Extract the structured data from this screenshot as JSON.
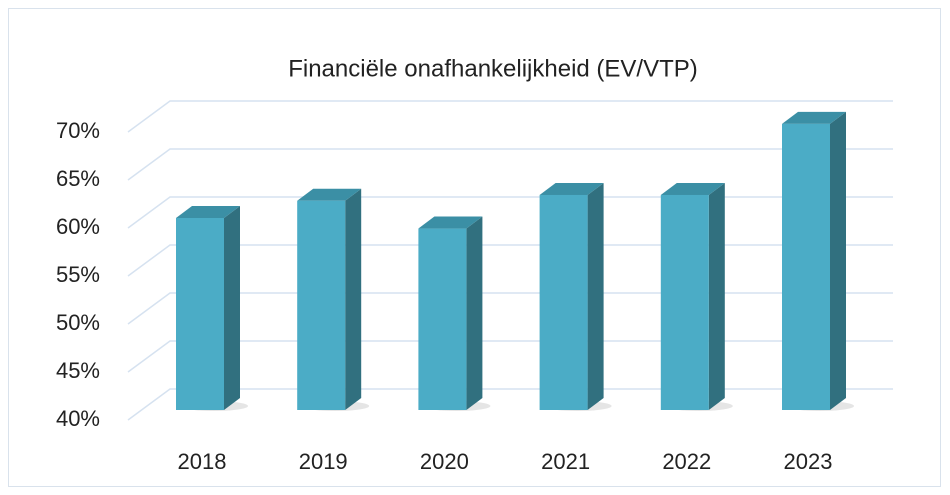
{
  "chart_data": {
    "type": "bar3d",
    "title": "Financiële onafhankelijkheid (EV/VTP)",
    "categories": [
      "2018",
      "2019",
      "2020",
      "2021",
      "2022",
      "2023"
    ],
    "values": [
      60,
      61.8,
      58.9,
      62.4,
      62.4,
      69.8
    ],
    "color": "#4bacc6",
    "ylim": [
      40,
      70
    ],
    "yticks": [
      {
        "value": 40,
        "label": "40%"
      },
      {
        "value": 45,
        "label": "45%"
      },
      {
        "value": 50,
        "label": "50%"
      },
      {
        "value": 55,
        "label": "55%"
      },
      {
        "value": 60,
        "label": "60%"
      },
      {
        "value": 65,
        "label": "65%"
      },
      {
        "value": 70,
        "label": "70%"
      }
    ],
    "grid": true
  }
}
